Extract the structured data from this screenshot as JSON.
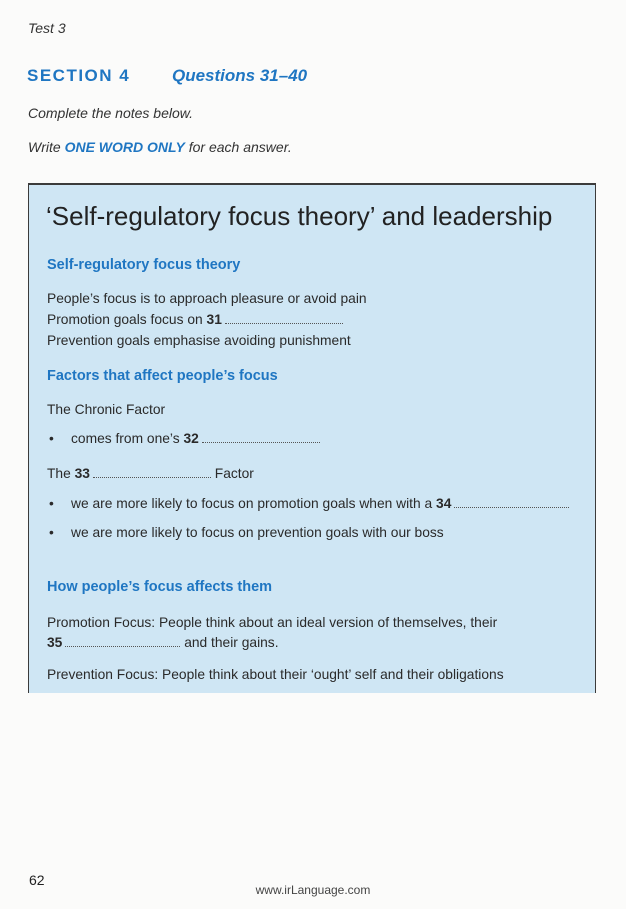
{
  "page": {
    "test_label": "Test 3",
    "section": "SECTION 4",
    "questions": "Questions 31–40",
    "instruction_1": "Complete the notes below.",
    "instruction_2_prefix": "Write ",
    "instruction_2_highlight": "ONE WORD ONLY",
    "instruction_2_suffix": " for each answer.",
    "page_number": "62",
    "website": "www.irLanguage.com"
  },
  "notes": {
    "title": "‘Self-regulatory focus theory’ and leadership",
    "sections": [
      {
        "heading": "Self-regulatory focus theory",
        "lines": [
          {
            "text": "People’s focus is to approach pleasure or avoid pain"
          },
          {
            "prefix": "Promotion goals focus on ",
            "question": "31"
          },
          {
            "text": "Prevention goals emphasise avoiding punishment"
          }
        ]
      },
      {
        "heading": "Factors that affect people’s focus",
        "lines": [
          {
            "text": "The Chronic Factor"
          },
          {
            "bullet": "•",
            "prefix": "comes from one’s ",
            "question": "32"
          },
          {
            "prefix": "The ",
            "question": "33",
            "suffix": " Factor"
          },
          {
            "bullet": "•",
            "prefix": "we are more likely to focus on promotion goals when with a ",
            "question": "34"
          },
          {
            "bullet": "•",
            "text": "we are more likely to focus on prevention goals with our boss"
          }
        ]
      },
      {
        "heading": "How people’s focus affects them",
        "lines": [
          {
            "text": "Promotion Focus: People think about an ideal version of themselves, their"
          },
          {
            "question": "35",
            "suffix": " and their gains."
          },
          {
            "text": "Prevention Focus: People think about their ‘ought’ self and their obligations"
          }
        ]
      }
    ]
  }
}
